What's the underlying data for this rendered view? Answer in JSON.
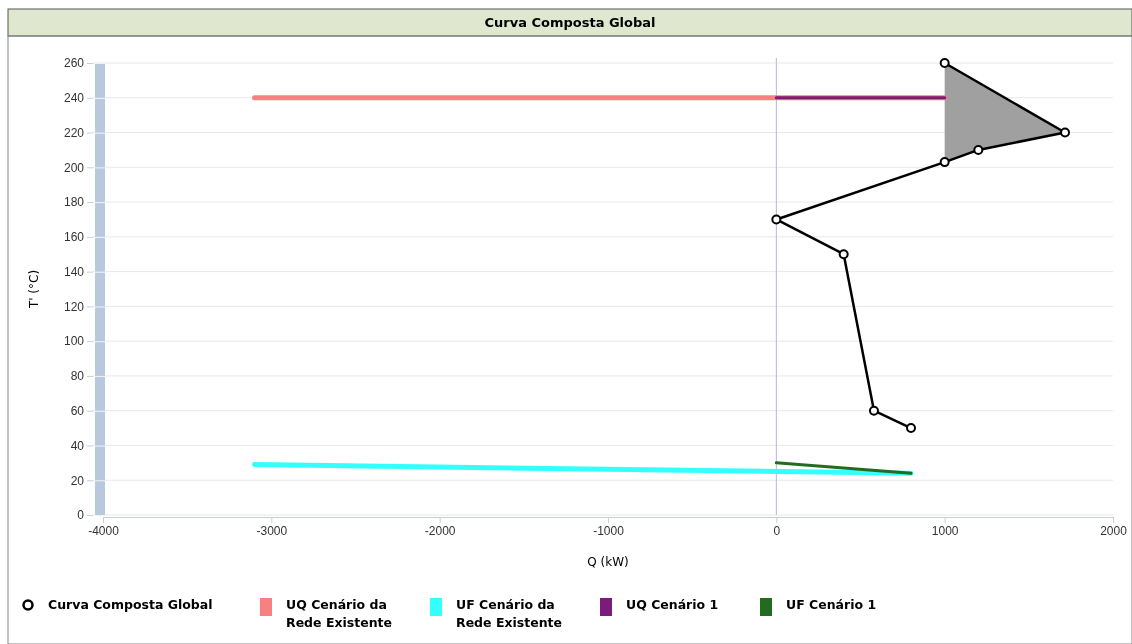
{
  "chart_data": {
    "type": "line",
    "title": "Curva Composta Global",
    "xlabel": "Q (kW)",
    "ylabel": "T' (°C)",
    "xlim": [
      -4000,
      2000
    ],
    "xticks": [
      -4000,
      -3000,
      -2000,
      -1000,
      0,
      1000,
      2000
    ],
    "ylim": [
      0,
      260
    ],
    "yticks": [
      0,
      20,
      40,
      60,
      80,
      100,
      120,
      140,
      160,
      180,
      200,
      220,
      240,
      260
    ],
    "grid": "y",
    "legend": "bottom",
    "ref_lines": [
      {
        "axis": "x",
        "value": 0,
        "color": "#b0bccb"
      }
    ],
    "series": [
      {
        "name": "Curva Composta Global",
        "color": "#000000",
        "marker": "circle",
        "x": [
          1000,
          1715,
          1200,
          1000,
          0,
          400,
          580,
          800
        ],
        "values": [
          260,
          220,
          210,
          203,
          170,
          150,
          60,
          50
        ]
      },
      {
        "type": "area",
        "color": "#a0a0a0",
        "x": [
          1000,
          1715,
          1200,
          1000
        ],
        "values": [
          260,
          220,
          210,
          203
        ]
      },
      {
        "name": "UQ Cenário da Rede Existente",
        "color": "#f88080",
        "marker": "none",
        "x": [
          -3100,
          1000
        ],
        "values": [
          240,
          240
        ]
      },
      {
        "name": "UF Cenário da Rede Existente",
        "color": "#33ffff",
        "marker": "none",
        "x": [
          -3100,
          800
        ],
        "values": [
          29,
          24
        ]
      },
      {
        "name": "UQ Cenário 1",
        "color": "#7b1b7b",
        "marker": "none",
        "x": [
          0,
          1000
        ],
        "values": [
          240,
          240
        ]
      },
      {
        "name": "UF Cenário 1",
        "color": "#236b1f",
        "marker": "none",
        "x": [
          0,
          800
        ],
        "values": [
          30,
          24
        ]
      }
    ]
  }
}
